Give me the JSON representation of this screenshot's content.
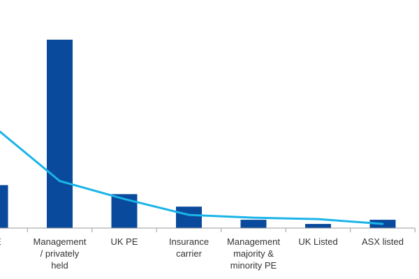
{
  "chart_data": {
    "type": "bar",
    "title": "",
    "xlabel": "",
    "ylabel": "",
    "categories": [
      "PE",
      "Management / privately held",
      "UK PE",
      "Insurance carrier",
      "Management majority & minority PE",
      "UK Listed",
      "ASX listed"
    ],
    "category_lines": [
      [
        "PE"
      ],
      [
        "Management",
        "/ privately",
        "held"
      ],
      [
        "UK PE"
      ],
      [
        "Insurance",
        "carrier"
      ],
      [
        "Management",
        "majority &",
        "minority PE"
      ],
      [
        "UK Listed"
      ],
      [
        "ASX listed"
      ]
    ],
    "series": [
      {
        "type": "bar",
        "color": "#0a4a9c",
        "values": [
          62,
          272,
          49,
          31,
          12,
          6,
          12
        ]
      },
      {
        "type": "line",
        "color": "#1ab4e8",
        "values": [
          145,
          68,
          42,
          19,
          15,
          13,
          6
        ]
      }
    ],
    "ylim": [
      0,
      290
    ],
    "grid": false,
    "legend": "none"
  }
}
